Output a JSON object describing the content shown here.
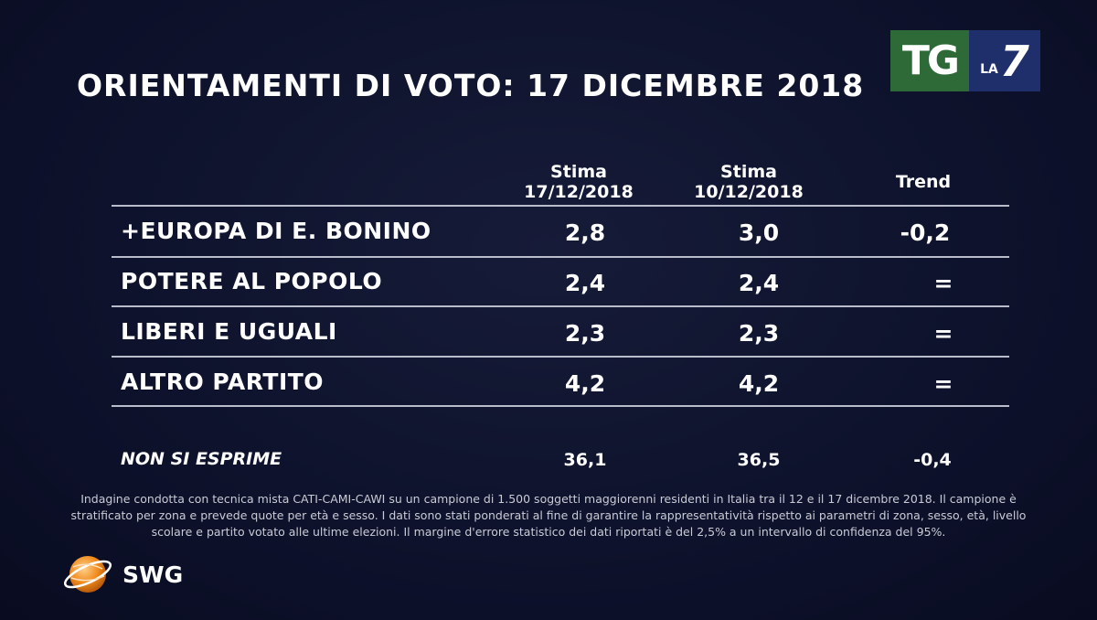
{
  "title": "ORIENTAMENTI DI VOTO: 17 DICEMBRE 2018",
  "logo": {
    "tg": "TG",
    "la": "LA",
    "seven": "7",
    "tg_color": "#2e6a37",
    "la7_color": "#1f2f6b"
  },
  "columns": [
    {
      "line1": "Stima",
      "line2": "17/12/2018"
    },
    {
      "line1": "Stima",
      "line2": "10/12/2018"
    },
    {
      "line1": "Trend",
      "line2": ""
    }
  ],
  "chart_data": {
    "type": "table",
    "columns": [
      "Stima 17/12/2018",
      "Stima 10/12/2018",
      "Trend"
    ],
    "rows": [
      {
        "party": "+EUROPA DI E. BONINO",
        "values": [
          "2,8",
          "3,0",
          "-0,2"
        ]
      },
      {
        "party": "POTERE AL POPOLO",
        "values": [
          "2,4",
          "2,4",
          "="
        ]
      },
      {
        "party": "LIBERI E UGUALI",
        "values": [
          "2,3",
          "2,3",
          "="
        ]
      },
      {
        "party": "ALTRO PARTITO",
        "values": [
          "4,2",
          "4,2",
          "="
        ]
      }
    ],
    "non_si_esprime": {
      "label": "NON SI ESPRIME",
      "values": [
        "36,1",
        "36,5",
        "-0,4"
      ]
    }
  },
  "note_lines": [
    "Indagine condotta con tecnica mista CATI-CAMI-CAWI su un campione di 1.500 soggetti maggiorenni residenti in Italia tra il 12 e il 17 dicembre 2018. Il campione è",
    "stratificato per zona e prevede quote per età e sesso. I dati sono stati ponderati al fine di garantire la rappresentatività rispetto ai parametri di zona, sesso, età, livello",
    "scolare e partito votato alle ultime elezioni. Il margine d'errore statistico dei dati riportati è del 2,5% a un intervallo di confidenza del 95%."
  ],
  "swg": {
    "text": "SWG",
    "orange": "#f08a1c"
  }
}
